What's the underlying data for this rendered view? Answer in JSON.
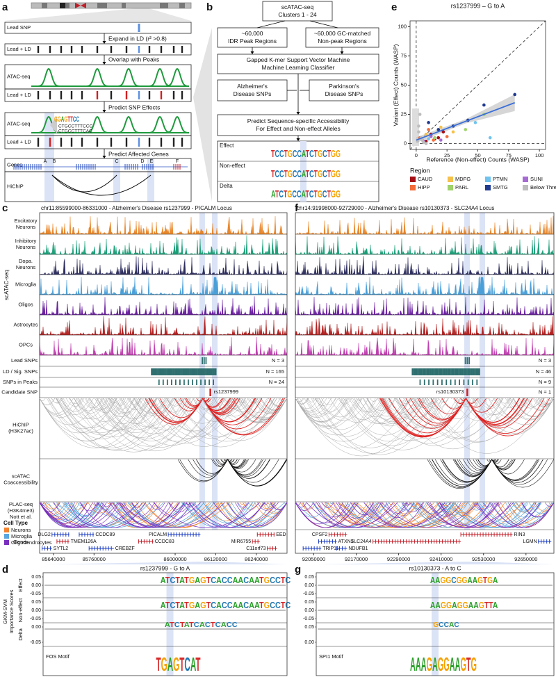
{
  "panel_a": {
    "label": "a",
    "rows": [
      "Lead SNP",
      "Lead + LD",
      "ATAC-seq",
      "Lead + LD",
      "ATAC-seq",
      "Lead + LD",
      "Genes",
      "HiChIP"
    ],
    "steps": [
      "Expand in LD (r² >0.8)",
      "Overlap with Peaks",
      "Predict SNP Effects",
      "Predict Affected Genes"
    ],
    "gene_letters": [
      "A",
      "B",
      "C",
      "D",
      "E",
      "F"
    ],
    "motif": {
      "logo": "GGAGTTCC",
      "seqs": [
        "CTGCCTTTCCC",
        "CTGCCTTTCAC"
      ]
    }
  },
  "panel_b": {
    "label": "b",
    "boxes": [
      [
        "scATAC-seq",
        "Clusters 1 - 24"
      ],
      [
        "~60,000",
        "IDR Peak Regions"
      ],
      [
        "~60,000 GC-matched",
        "Non-peak Regions"
      ],
      [
        "Gapped K-mer Support Vector Machine",
        "Machine Learning Classifier"
      ],
      [
        "Alzheimer's",
        "Disease SNPs"
      ],
      [
        "Parkinson's",
        "Disease SNPs"
      ],
      [
        "Predict Sequence-specific Accessibility",
        "For Effect and Non-effect Alleles"
      ]
    ],
    "logos": [
      {
        "name": "Effect",
        "seq": "TCCTGCCATCTGCTGG"
      },
      {
        "name": "Non-effect",
        "seq": "TCCTGCCATCTGCTGG"
      },
      {
        "name": "Delta",
        "seq": "ATCTGCCATCTGCTGG"
      }
    ]
  },
  "chart_data": {
    "type": "scatter",
    "label": "e",
    "title": "rs1237999 – G to A",
    "x_label": "Reference (Non-effect) Counts (WASP)",
    "y_label": "Variant (Effect) Counts (WASP)",
    "xlim": [
      -5,
      105
    ],
    "ylim": [
      -5,
      105
    ],
    "xticks": [
      0,
      25,
      50,
      75,
      100
    ],
    "yticks": [
      0,
      25,
      50,
      75,
      100
    ],
    "legend_title": "Region",
    "series": [
      {
        "name": "CAUD",
        "color": "#a50f15",
        "x": [
          5,
          12,
          18,
          22,
          8,
          15
        ],
        "y": [
          3,
          8,
          5,
          10,
          2,
          4
        ]
      },
      {
        "name": "HIPP",
        "color": "#f26b38",
        "x": [
          3,
          10,
          25,
          14
        ],
        "y": [
          5,
          12,
          6,
          3
        ]
      },
      {
        "name": "MDFG",
        "color": "#f6c14a",
        "x": [
          8,
          20,
          30
        ],
        "y": [
          8,
          14,
          10
        ]
      },
      {
        "name": "PARL",
        "color": "#9fd36a",
        "x": [
          55,
          15,
          40
        ],
        "y": [
          25,
          5,
          12
        ]
      },
      {
        "name": "PTMN",
        "color": "#6fc3ee",
        "x": [
          48,
          60,
          10
        ],
        "y": [
          18,
          5,
          4
        ]
      },
      {
        "name": "SMTG",
        "color": "#203a8f",
        "x": [
          80,
          55,
          10,
          18,
          30,
          42
        ],
        "y": [
          42,
          33,
          18,
          12,
          15,
          20
        ]
      },
      {
        "name": "SUNI",
        "color": "#a66bd3",
        "x": [
          6,
          12,
          20
        ],
        "y": [
          2,
          6,
          3
        ]
      },
      {
        "name": "Below Thresh.",
        "color": "#bdbdbd",
        "x": [
          1,
          2,
          3,
          4,
          5,
          6,
          2,
          8
        ],
        "y": [
          2,
          10,
          25,
          5,
          3,
          1,
          15,
          0
        ]
      }
    ],
    "trend_line": {
      "color": "#3a6fd8",
      "x": [
        0,
        80
      ],
      "y": [
        3,
        35
      ]
    }
  },
  "panel_c": {
    "label": "c",
    "title": "chr11:85599000-86331000 - Alzheimer's Disease rs1237999 - PICALM Locus",
    "xlim": [
      85599000,
      86331000
    ],
    "group_label": "scATAC-seq",
    "tracks": [
      [
        "Excitatory",
        "Neurons"
      ],
      [
        "Inhibitory",
        "Neurons"
      ],
      [
        "Dopa.",
        "Neurons"
      ],
      [
        "Microglia"
      ],
      [
        "Oligos"
      ],
      [
        "Astrocytes"
      ],
      [
        "OPCs"
      ]
    ],
    "track_colors": [
      "#e8862a",
      "#1a9e77",
      "#2d2d5e",
      "#4a9fd8",
      "#6a1fa0",
      "#b22222",
      "#c040b0"
    ],
    "snp_rows": [
      "Lead SNPs",
      "LD / Sig. SNPs",
      "SNPs in Peaks",
      "Candidate SNP"
    ],
    "counts": [
      "N = 3",
      "N = 165",
      "N = 24"
    ],
    "candidate": "rs1237999",
    "loop_rows": [
      [
        "HiChIP",
        "(H3K27ac)"
      ],
      [
        "scATAC",
        "Coaccessibility"
      ],
      [
        "PLAC-seq",
        "(H3K4me3)",
        "Nott et al."
      ]
    ],
    "legend_title": "Cell Type",
    "legend": [
      {
        "name": "Neurons",
        "color": "#f4822f"
      },
      {
        "name": "Microglia",
        "color": "#5aa6e0"
      },
      {
        "name": "Oligodendrocytes",
        "color": "#7b2fbf"
      }
    ],
    "genes_label": "Genes",
    "genes": [
      {
        "name": "DLG2",
        "color": "#1f3fbf"
      },
      {
        "name": "CCDC89",
        "color": "#1f3fbf"
      },
      {
        "name": "PICALM",
        "color": "#1f3fbf"
      },
      {
        "name": "EED",
        "color": "#c0202a"
      },
      {
        "name": "TMEM126A",
        "color": "#c0202a"
      },
      {
        "name": "CCDC83",
        "color": "#c0202a"
      },
      {
        "name": "MIR6755",
        "color": "#c0202a"
      },
      {
        "name": "SYTL2",
        "color": "#1f3fbf"
      },
      {
        "name": "CREBZF",
        "color": "#1f3fbf"
      },
      {
        "name": "C11orf73",
        "color": "#c0202a"
      }
    ],
    "xticks": [
      85640000,
      85760000,
      86000000,
      86120000,
      86240000
    ]
  },
  "panel_f": {
    "label": "f",
    "title": "chr14:91998000-92729000 - Alzheimer's Disease rs10130373 - SLC24A4 Locus",
    "xlim": [
      91998000,
      92729000
    ],
    "counts": [
      "N = 3",
      "N = 46",
      "N = 9",
      "N = 1"
    ],
    "candidate": "rs10130373",
    "genes": [
      {
        "name": "CPSF2",
        "color": "#c0202a"
      },
      {
        "name": "RIN3",
        "color": "#c0202a"
      },
      {
        "name": "ATXN3",
        "color": "#1f3fbf"
      },
      {
        "name": "SLC24A4",
        "color": "#c0202a"
      },
      {
        "name": "LGMN",
        "color": "#1f3fbf"
      },
      {
        "name": "TRIP11",
        "color": "#1f3fbf"
      },
      {
        "name": "NDUFB1",
        "color": "#1f3fbf"
      }
    ],
    "xticks": [
      92050000,
      92170000,
      92290000,
      92410000,
      92530000,
      92650000
    ]
  },
  "panel_d": {
    "label": "d",
    "title": "rs1237999 - G to A",
    "y_label": [
      "GKM-SVM",
      "Importance Scores"
    ],
    "rows": [
      "Effect",
      "Non-effect",
      "Delta"
    ],
    "yticks": [
      [
        "0.05",
        "0.00",
        "-0.05"
      ],
      [
        "0.05",
        "0.00",
        "-0.05"
      ],
      [
        "0.00",
        "-0.05"
      ]
    ],
    "motif": "FOS Motif",
    "logos": [
      "ATCTATGAGTCACCAACAATGCCTC",
      "ATCTATGAGTCACCAACAATGCCTC",
      "ATCTATCACTCACC",
      "TGAGTCAT"
    ]
  },
  "panel_g": {
    "label": "g",
    "title": "rs10130373 - A to C",
    "yticks": [
      [
        "0.05",
        "0.00",
        "-0.05"
      ],
      [
        "0.05",
        "0.00",
        "-0.05"
      ],
      [
        "0.05",
        "0.00"
      ]
    ],
    "motif": "SPI1 Motif",
    "logos": [
      "AAGGCGGAAGTGA",
      "AAGGAGGAAGTTA",
      "GCCAC",
      "AAAGAGGAAGTG"
    ]
  }
}
